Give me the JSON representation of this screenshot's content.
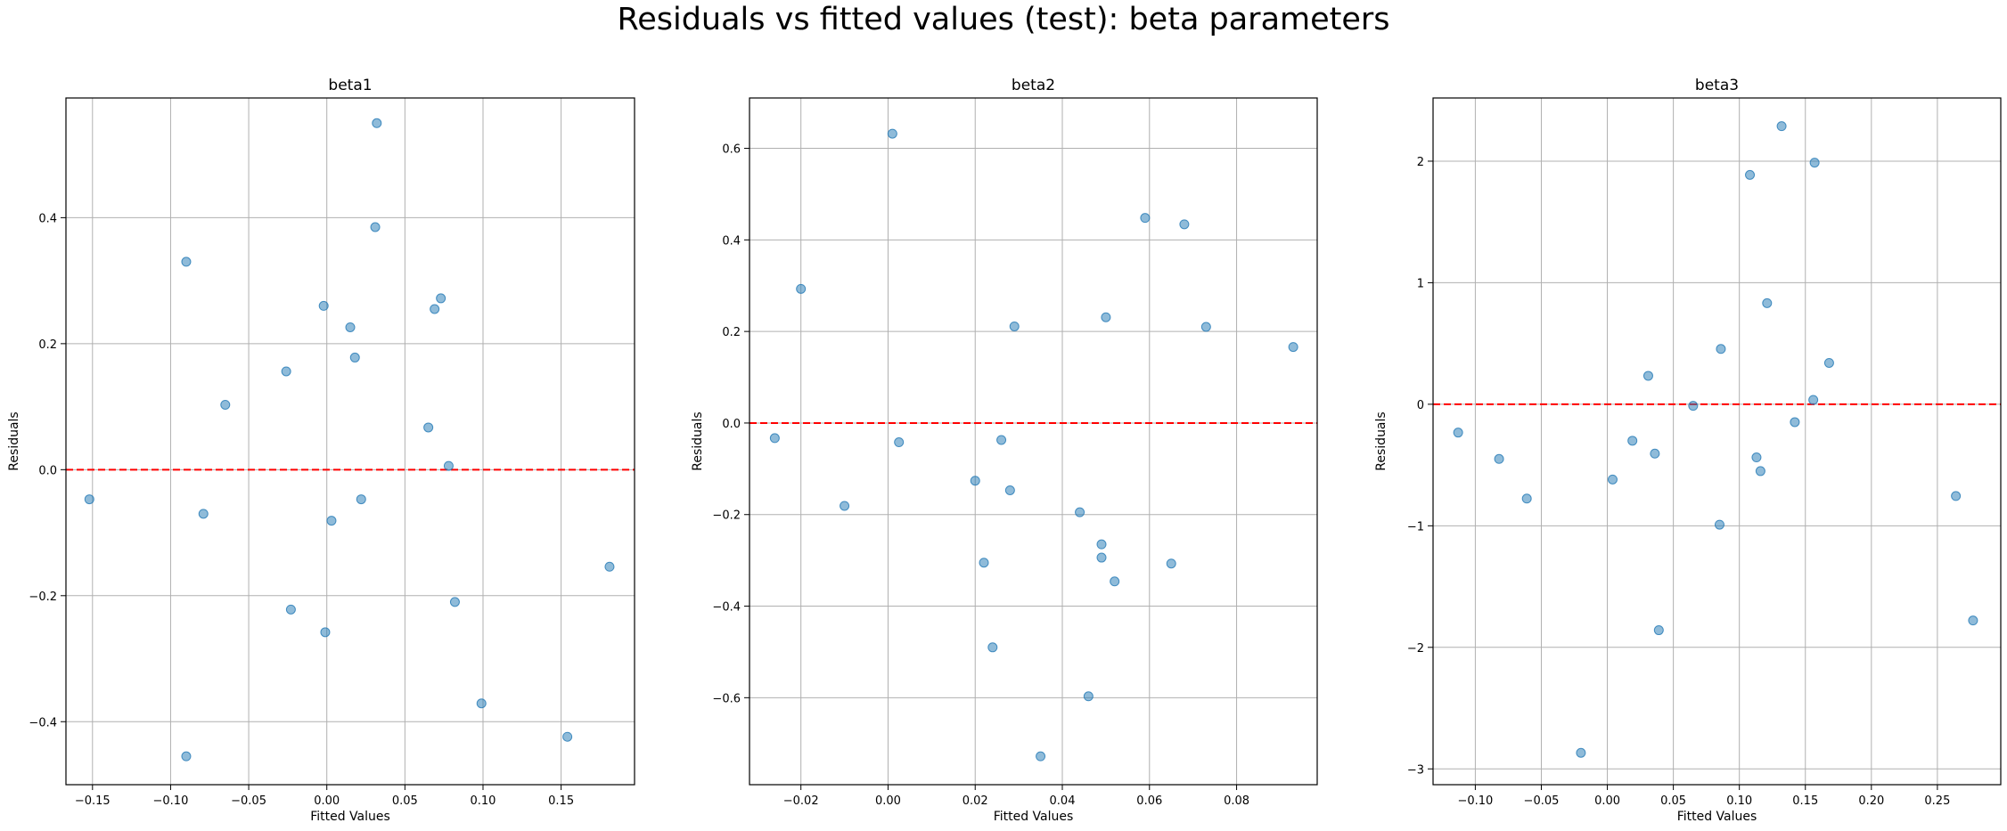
{
  "figure_title": "Residuals vs fitted values (test): beta parameters",
  "colors": {
    "points": "#1f77b4",
    "zero_line": "#ff0000",
    "grid": "#b0b0b0"
  },
  "chart_data": [
    {
      "type": "scatter",
      "title": "beta1",
      "xlabel": "Fitted Values",
      "ylabel": "Residuals",
      "xlim": [
        -0.167,
        0.197
      ],
      "ylim": [
        -0.5,
        0.59
      ],
      "xticks": [
        -0.15,
        -0.1,
        -0.05,
        0.0,
        0.05,
        0.1,
        0.15
      ],
      "xtick_labels": [
        "−0.15",
        "−0.10",
        "−0.05",
        "0.00",
        "0.05",
        "0.10",
        "0.15"
      ],
      "yticks": [
        -0.4,
        -0.2,
        0.0,
        0.2,
        0.4
      ],
      "ytick_labels": [
        "−0.4",
        "−0.2",
        "0.0",
        "0.2",
        "0.4"
      ],
      "grid": true,
      "reference_line_y": 0,
      "x": [
        -0.152,
        -0.09,
        -0.09,
        -0.079,
        -0.065,
        -0.026,
        -0.023,
        -0.002,
        -0.001,
        0.003,
        0.015,
        0.018,
        0.022,
        0.031,
        0.032,
        0.065,
        0.069,
        0.073,
        0.078,
        0.082,
        0.099,
        0.154,
        0.181
      ],
      "y": [
        -0.047,
        0.33,
        -0.455,
        -0.07,
        0.103,
        0.156,
        -0.222,
        0.26,
        -0.258,
        -0.081,
        0.226,
        0.178,
        -0.047,
        0.385,
        0.55,
        0.067,
        0.255,
        0.272,
        0.006,
        -0.21,
        -0.371,
        -0.424,
        -0.154
      ]
    },
    {
      "type": "scatter",
      "title": "beta2",
      "xlabel": "Fitted Values",
      "ylabel": "Residuals",
      "xlim": [
        -0.0318,
        0.0985
      ],
      "ylim": [
        -0.79,
        0.71
      ],
      "xticks": [
        -0.02,
        0.0,
        0.02,
        0.04,
        0.06,
        0.08
      ],
      "xtick_labels": [
        "−0.02",
        "0.00",
        "0.02",
        "0.04",
        "0.06",
        "0.08"
      ],
      "yticks": [
        -0.6,
        -0.4,
        -0.2,
        0.0,
        0.2,
        0.4,
        0.6
      ],
      "ytick_labels": [
        "−0.6",
        "−0.4",
        "−0.2",
        "0.0",
        "0.2",
        "0.4",
        "0.6"
      ],
      "grid": true,
      "reference_line_y": 0,
      "x": [
        -0.026,
        -0.02,
        -0.01,
        0.001,
        0.0025,
        0.02,
        0.022,
        0.024,
        0.026,
        0.028,
        0.029,
        0.035,
        0.044,
        0.046,
        0.049,
        0.049,
        0.05,
        0.052,
        0.059,
        0.065,
        0.068,
        0.073,
        0.093
      ],
      "y": [
        -0.033,
        0.293,
        -0.181,
        0.632,
        -0.042,
        -0.126,
        -0.305,
        -0.49,
        -0.037,
        -0.147,
        0.211,
        -0.728,
        -0.195,
        -0.597,
        -0.265,
        -0.294,
        0.231,
        -0.346,
        0.448,
        -0.307,
        0.434,
        0.21,
        0.166
      ]
    },
    {
      "type": "scatter",
      "title": "beta3",
      "xlabel": "Fitted Values",
      "ylabel": "Residuals",
      "xlim": [
        -0.132,
        0.298
      ],
      "ylim": [
        -3.13,
        2.52
      ],
      "xticks": [
        -0.1,
        -0.05,
        0.0,
        0.05,
        0.1,
        0.15,
        0.2,
        0.25
      ],
      "xtick_labels": [
        "−0.10",
        "−0.05",
        "0.00",
        "0.05",
        "0.10",
        "0.15",
        "0.20",
        "0.25"
      ],
      "yticks": [
        -3,
        -2,
        -1,
        0,
        1,
        2
      ],
      "ytick_labels": [
        "−3",
        "−2",
        "−1",
        "0",
        "1",
        "2"
      ],
      "grid": true,
      "reference_line_y": 0,
      "x": [
        -0.113,
        -0.082,
        -0.061,
        -0.02,
        0.004,
        0.019,
        0.031,
        0.036,
        0.039,
        0.065,
        0.085,
        0.086,
        0.108,
        0.113,
        0.116,
        0.121,
        0.132,
        0.142,
        0.156,
        0.157,
        0.168,
        0.264,
        0.277
      ],
      "y": [
        -0.233,
        -0.45,
        -0.776,
        -2.868,
        -0.619,
        -0.3,
        0.234,
        -0.406,
        -1.859,
        -0.013,
        -0.991,
        0.455,
        1.887,
        -0.437,
        -0.55,
        0.832,
        2.288,
        -0.147,
        0.036,
        1.988,
        0.34,
        -0.755,
        -1.779
      ]
    }
  ]
}
